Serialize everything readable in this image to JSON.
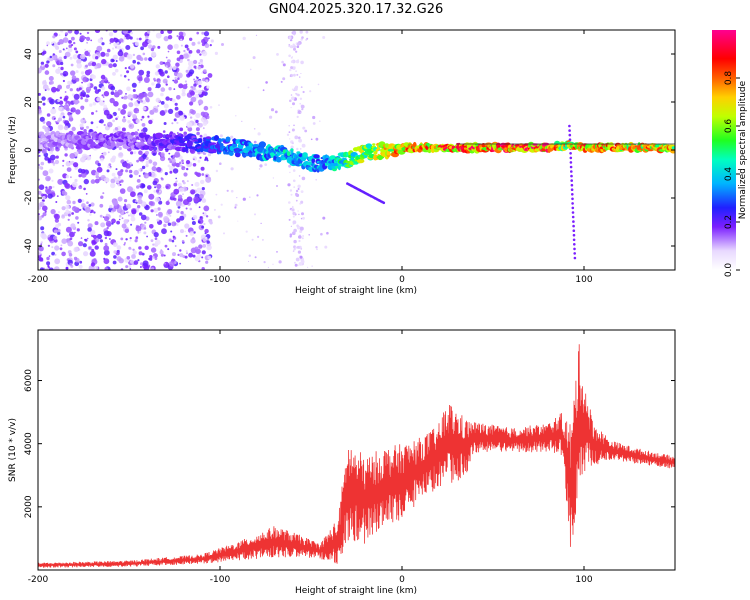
{
  "figure": {
    "title": "GN04.2025.320.17.32.G26"
  },
  "chart_data": [
    {
      "type": "heatmap",
      "name": "spectrogram",
      "xlabel": "Height of straight line (km)",
      "ylabel": "Frequency (Hz)",
      "xlim": [
        -200,
        150
      ],
      "ylim": [
        -50,
        50
      ],
      "xticks": [
        -200,
        -100,
        0,
        100
      ],
      "yticks": [
        -40,
        -20,
        0,
        20,
        40
      ],
      "colorbar": {
        "label": "Normalized spectral amplitude",
        "range": [
          0,
          1
        ],
        "ticks": [
          0.0,
          0.2,
          0.4,
          0.6,
          0.8
        ]
      },
      "ridge": {
        "description_x": [
          -200,
          -150,
          -120,
          -100,
          -80,
          -60,
          -50,
          -40,
          -30,
          -20,
          -10,
          0,
          20,
          40,
          60,
          80,
          90,
          100,
          120,
          150
        ],
        "frequency": [
          4,
          4,
          3,
          2,
          0,
          -3,
          -5,
          -6,
          -4,
          -1,
          0,
          1,
          1,
          1,
          1,
          1,
          2,
          1,
          1,
          1
        ],
        "amplitude": [
          0.15,
          0.2,
          0.25,
          0.35,
          0.45,
          0.5,
          0.45,
          0.45,
          0.6,
          0.75,
          0.8,
          0.9,
          0.95,
          1.0,
          1.0,
          1.0,
          0.8,
          0.95,
          0.9,
          0.85
        ]
      }
    },
    {
      "type": "line",
      "name": "snr",
      "xlabel": "Height of straight line (km)",
      "ylabel": "SNR (10 * v/v)",
      "xlim": [
        -200,
        150
      ],
      "ylim": [
        0,
        7600
      ],
      "xticks": [
        -200,
        -100,
        0,
        100
      ],
      "yticks": [
        2000,
        4000,
        6000
      ],
      "color": "#ee3333",
      "envelope": {
        "x": [
          -200,
          -150,
          -110,
          -90,
          -70,
          -60,
          -45,
          -35,
          -30,
          -20,
          -10,
          0,
          10,
          20,
          25,
          35,
          40,
          60,
          80,
          88,
          93,
          97,
          100,
          105,
          115,
          130,
          150
        ],
        "y": [
          150,
          200,
          350,
          600,
          900,
          800,
          600,
          900,
          2500,
          2200,
          2600,
          2800,
          3200,
          3600,
          4000,
          3900,
          4200,
          4100,
          4200,
          4300,
          2500,
          4800,
          4600,
          4000,
          3800,
          3600,
          3400
        ],
        "spread": [
          80,
          100,
          150,
          300,
          500,
          400,
          250,
          800,
          1600,
          1400,
          1300,
          1200,
          1000,
          1000,
          1400,
          900,
          500,
          400,
          450,
          700,
          2200,
          2500,
          1500,
          700,
          300,
          250,
          200
        ]
      }
    }
  ]
}
